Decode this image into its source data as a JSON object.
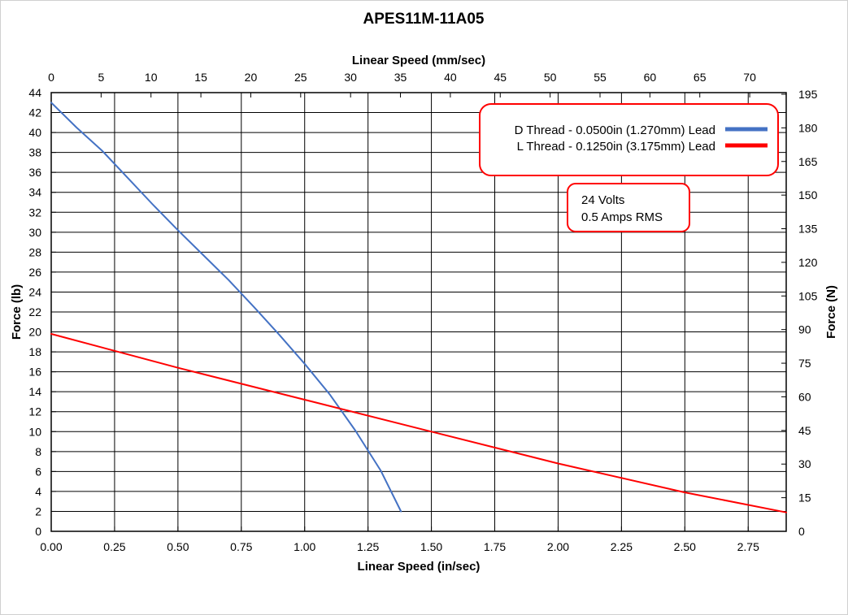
{
  "chart_data": {
    "type": "line",
    "title": "APES11M-11A05",
    "x_bottom": {
      "label": "Linear Speed (in/sec)",
      "range": [
        0,
        2.9
      ],
      "ticks": [
        0,
        0.25,
        0.5,
        0.75,
        1.0,
        1.25,
        1.5,
        1.75,
        2.0,
        2.25,
        2.5,
        2.75
      ],
      "tick_labels": [
        "0.00",
        "0.25",
        "0.50",
        "0.75",
        "1.00",
        "1.25",
        "1.50",
        "1.75",
        "2.00",
        "2.25",
        "2.50",
        "2.75"
      ]
    },
    "x_top": {
      "label": "Linear Speed (mm/sec)",
      "range": [
        0,
        73.66
      ],
      "ticks": [
        0,
        5,
        10,
        15,
        20,
        25,
        30,
        35,
        40,
        45,
        50,
        55,
        60,
        65,
        70
      ],
      "tick_labels": [
        "0",
        "5",
        "10",
        "15",
        "20",
        "25",
        "30",
        "35",
        "40",
        "45",
        "50",
        "55",
        "60",
        "65",
        "70"
      ]
    },
    "y_left": {
      "label": "Force (lb)",
      "range": [
        0,
        44
      ],
      "ticks": [
        0,
        2,
        4,
        6,
        8,
        10,
        12,
        14,
        16,
        18,
        20,
        22,
        24,
        26,
        28,
        30,
        32,
        34,
        36,
        38,
        40,
        42,
        44
      ],
      "tick_labels": [
        "0",
        "2",
        "4",
        "6",
        "8",
        "10",
        "12",
        "14",
        "16",
        "18",
        "20",
        "22",
        "24",
        "26",
        "28",
        "30",
        "32",
        "34",
        "36",
        "38",
        "40",
        "42",
        "44"
      ]
    },
    "y_right": {
      "label": "Force (N)",
      "range": [
        0,
        195.72
      ],
      "ticks": [
        0,
        15,
        30,
        45,
        60,
        75,
        90,
        105,
        120,
        135,
        150,
        165,
        180,
        195
      ],
      "tick_labels": [
        "0",
        "15",
        "30",
        "45",
        "60",
        "75",
        "90",
        "105",
        "120",
        "135",
        "150",
        "165",
        "180",
        "195"
      ]
    },
    "grid": true,
    "legend_position": "top-right",
    "series": [
      {
        "name": "D Thread - 0.0500in (1.270mm) Lead",
        "color": "#4472c4",
        "x": [
          0,
          0.1,
          0.2,
          0.3,
          0.4,
          0.5,
          0.6,
          0.7,
          0.8,
          0.9,
          1.0,
          1.1,
          1.2,
          1.3,
          1.38
        ],
        "y": [
          43,
          40.5,
          38.2,
          35.5,
          32.8,
          30.2,
          27.7,
          25.2,
          22.5,
          19.7,
          16.8,
          13.7,
          10.1,
          6.1,
          2.0
        ]
      },
      {
        "name": "L Thread - 0.1250in (3.175mm) Lead",
        "color": "#ff0000",
        "x": [
          0,
          0.5,
          1.0,
          1.5,
          2.0,
          2.5,
          2.9
        ],
        "y": [
          19.8,
          16.4,
          13.2,
          10.0,
          6.8,
          3.9,
          1.9
        ]
      }
    ],
    "annotations": [
      {
        "lines": [
          "24 Volts",
          "0.5 Amps RMS"
        ],
        "border_color": "#ff0000"
      }
    ]
  }
}
